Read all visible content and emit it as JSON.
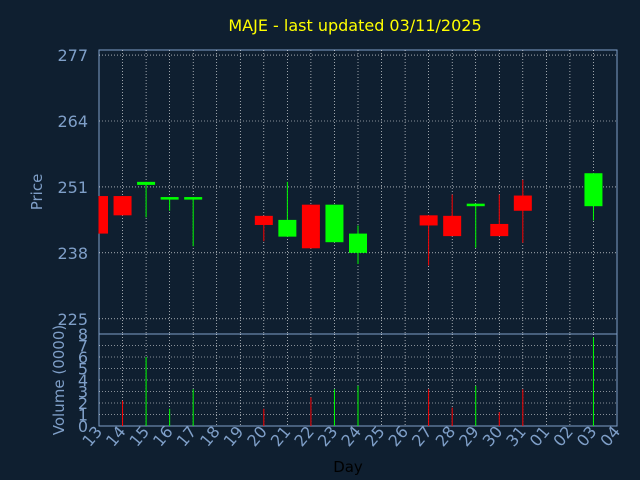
{
  "chart_data": {
    "type": "candlestick",
    "title": "MAJE - last updated 03/11/2025",
    "price_panel": {
      "ylabel": "Price",
      "ylim": [
        222,
        278
      ],
      "yticks": [
        277,
        264,
        251,
        238,
        225
      ]
    },
    "volume_panel": {
      "ylabel": "Volume (0000)",
      "ylim": [
        0,
        8
      ],
      "yticks": [
        0,
        1,
        2,
        3,
        4,
        5,
        6,
        7,
        8
      ]
    },
    "xlabel": "Day",
    "x_ticks": [
      "13",
      "14",
      "15",
      "16",
      "17",
      "18",
      "19",
      "20",
      "21",
      "22",
      "23",
      "24",
      "25",
      "26",
      "27",
      "28",
      "29",
      "30",
      "31",
      "01",
      "02",
      "03",
      "04"
    ],
    "candles": [
      {
        "day": "13",
        "open": 249.2,
        "close": 241.8,
        "high": 249.2,
        "low": 241.8,
        "volume": 0.0,
        "color": "down"
      },
      {
        "day": "14",
        "open": 249.2,
        "close": 245.4,
        "high": 249.2,
        "low": 245.4,
        "volume": 2.2,
        "color": "down"
      },
      {
        "day": "15",
        "open": 251.4,
        "close": 252.0,
        "high": 252.0,
        "low": 245.0,
        "volume": 6.0,
        "color": "up"
      },
      {
        "day": "16",
        "open": 248.5,
        "close": 249.0,
        "high": 249.0,
        "low": 246.3,
        "volume": 1.5,
        "color": "up"
      },
      {
        "day": "17",
        "open": 248.5,
        "close": 249.0,
        "high": 249.0,
        "low": 239.3,
        "volume": 3.2,
        "color": "up"
      },
      {
        "day": "20",
        "open": 245.3,
        "close": 243.5,
        "high": 245.3,
        "low": 240.3,
        "volume": 1.5,
        "color": "down"
      },
      {
        "day": "21",
        "open": 241.2,
        "close": 244.5,
        "high": 252.0,
        "low": 241.2,
        "volume": 0.0,
        "color": "up"
      },
      {
        "day": "22",
        "open": 247.5,
        "close": 238.9,
        "high": 247.5,
        "low": 238.9,
        "volume": 2.5,
        "color": "down"
      },
      {
        "day": "23",
        "open": 240.1,
        "close": 247.5,
        "high": 247.5,
        "low": 240.1,
        "volume": 3.2,
        "color": "up"
      },
      {
        "day": "24",
        "open": 238.0,
        "close": 241.8,
        "high": 243.4,
        "low": 235.8,
        "volume": 3.5,
        "color": "up"
      },
      {
        "day": "27",
        "open": 245.4,
        "close": 243.4,
        "high": 245.4,
        "low": 235.5,
        "volume": 3.2,
        "color": "down"
      },
      {
        "day": "28",
        "open": 245.3,
        "close": 241.3,
        "high": 249.5,
        "low": 241.3,
        "volume": 1.6,
        "color": "down"
      },
      {
        "day": "29",
        "open": 247.2,
        "close": 247.7,
        "high": 247.7,
        "low": 239.0,
        "volume": 3.5,
        "color": "up"
      },
      {
        "day": "30",
        "open": 243.7,
        "close": 241.3,
        "high": 249.5,
        "low": 241.3,
        "volume": 1.2,
        "color": "down"
      },
      {
        "day": "31",
        "open": 249.3,
        "close": 246.3,
        "high": 252.4,
        "low": 240.0,
        "volume": 3.2,
        "color": "down"
      },
      {
        "day": "03",
        "open": 247.2,
        "close": 253.7,
        "high": 253.7,
        "low": 244.4,
        "volume": 7.7,
        "color": "up"
      }
    ],
    "colors": {
      "background": "#0f1f30",
      "plot": "#0f1f30",
      "grid": "#ffffff",
      "frame": "#7f9fc8",
      "up": "#00ff00",
      "down": "#ff0000",
      "title": "#ffff00",
      "tick": "#7f9fc8"
    },
    "grid": true
  }
}
